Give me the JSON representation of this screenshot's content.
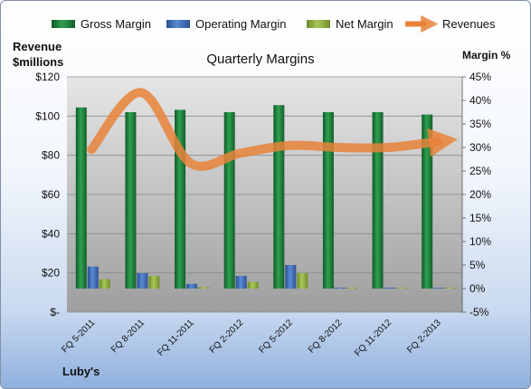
{
  "chart_data": {
    "type": "bar",
    "title": "Quarterly Margins",
    "left_axis_label_line1": "Revenue",
    "left_axis_label_line2": "$millions",
    "right_axis_label": "Margin %",
    "source_label": "Luby's",
    "categories": [
      "FQ 5-2011",
      "FQ 8-2011",
      "FQ 11-2011",
      "FQ 2-2012",
      "FQ 5-2012",
      "FQ 8-2012",
      "FQ 11-2012",
      "FQ 2-2013"
    ],
    "left_axis": {
      "min": 0,
      "max": 120,
      "step": 20,
      "ticks": [
        "$-",
        "$20",
        "$40",
        "$60",
        "$80",
        "$100",
        "$120"
      ]
    },
    "right_axis": {
      "min": -5,
      "max": 45,
      "step": 5,
      "ticks": [
        "-5%",
        "0%",
        "5%",
        "10%",
        "15%",
        "20%",
        "25%",
        "30%",
        "35%",
        "40%",
        "45%"
      ]
    },
    "series": [
      {
        "name": "Gross Margin",
        "type": "bar",
        "axis": "right",
        "color": "#1e7a3c",
        "values": [
          38.5,
          37.5,
          38.0,
          37.5,
          39.0,
          37.5,
          37.5,
          37.0
        ]
      },
      {
        "name": "Operating Margin",
        "type": "bar",
        "axis": "right",
        "color": "#3f6db8",
        "values": [
          4.7,
          3.3,
          1.0,
          2.7,
          5.0,
          0.2,
          0.2,
          0.2
        ]
      },
      {
        "name": "Net Margin",
        "type": "bar",
        "axis": "right",
        "color": "#8fae3c",
        "values": [
          2.0,
          2.7,
          0.3,
          1.4,
          3.3,
          0.2,
          0.2,
          0.2
        ]
      },
      {
        "name": "Revenues",
        "type": "line",
        "axis": "left",
        "color": "#e8823a",
        "values": [
          83,
          112,
          76,
          81,
          85,
          84,
          84,
          87
        ]
      }
    ],
    "legend_position": "top",
    "grid": true
  }
}
